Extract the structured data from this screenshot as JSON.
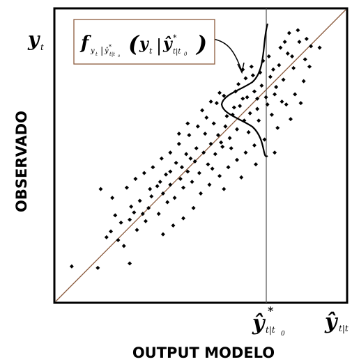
{
  "chart_data": {
    "type": "scatter",
    "title": "",
    "xlabel": "OUTPUT MODELO",
    "ylabel": "OBSERVADO",
    "xlim": [
      0,
      10
    ],
    "ylim": [
      0,
      10
    ],
    "grid": false,
    "reference_line": "y = x",
    "vertical_line_x": 7.26,
    "points": [
      [
        0.55,
        1.2
      ],
      [
        1.45,
        1.15
      ],
      [
        2.55,
        1.3
      ],
      [
        2.15,
        2.1
      ],
      [
        1.9,
        2.4
      ],
      [
        2.25,
        2.7
      ],
      [
        2.55,
        2.8
      ],
      [
        2.8,
        2.45
      ],
      [
        3.0,
        3.0
      ],
      [
        3.2,
        3.2
      ],
      [
        3.55,
        3.0
      ],
      [
        3.3,
        3.6
      ],
      [
        3.7,
        3.7
      ],
      [
        3.85,
        3.4
      ],
      [
        3.95,
        4.0
      ],
      [
        4.1,
        3.55
      ],
      [
        4.3,
        4.2
      ],
      [
        4.4,
        3.9
      ],
      [
        4.55,
        4.45
      ],
      [
        4.7,
        4.1
      ],
      [
        4.8,
        4.8
      ],
      [
        4.95,
        4.4
      ],
      [
        5.1,
        5.1
      ],
      [
        5.25,
        4.7
      ],
      [
        5.35,
        5.4
      ],
      [
        5.5,
        5.05
      ],
      [
        5.6,
        5.7
      ],
      [
        5.75,
        5.3
      ],
      [
        5.85,
        6.0
      ],
      [
        6.0,
        5.6
      ],
      [
        6.1,
        6.4
      ],
      [
        6.25,
        5.9
      ],
      [
        6.35,
        6.7
      ],
      [
        6.5,
        6.2
      ],
      [
        6.6,
        7.0
      ],
      [
        6.7,
        6.45
      ],
      [
        6.85,
        7.2
      ],
      [
        6.95,
        6.6
      ],
      [
        7.1,
        7.4
      ],
      [
        7.25,
        7.0
      ],
      [
        7.4,
        7.7
      ],
      [
        7.55,
        7.1
      ],
      [
        7.7,
        8.1
      ],
      [
        7.85,
        7.6
      ],
      [
        8.0,
        8.5
      ],
      [
        8.2,
        8.0
      ],
      [
        8.4,
        8.9
      ],
      [
        8.6,
        8.3
      ],
      [
        8.8,
        8.75
      ],
      [
        9.1,
        8.7
      ],
      [
        8.35,
        9.3
      ],
      [
        8.65,
        9.0
      ],
      [
        7.9,
        8.9
      ],
      [
        8.15,
        8.4
      ],
      [
        7.45,
        6.4
      ],
      [
        7.65,
        5.95
      ],
      [
        7.95,
        6.75
      ],
      [
        8.1,
        6.25
      ],
      [
        8.25,
        7.1
      ],
      [
        8.45,
        6.8
      ],
      [
        6.3,
        7.45
      ],
      [
        6.55,
        7.65
      ],
      [
        6.8,
        7.75
      ],
      [
        7.05,
        7.85
      ],
      [
        6.2,
        7.2
      ],
      [
        6.45,
        6.95
      ],
      [
        5.8,
        7.05
      ],
      [
        5.55,
        6.8
      ],
      [
        5.2,
        6.3
      ],
      [
        4.9,
        6.0
      ],
      [
        4.6,
        5.7
      ],
      [
        4.25,
        5.4
      ],
      [
        3.95,
        5.1
      ],
      [
        3.65,
        4.9
      ],
      [
        3.35,
        4.6
      ],
      [
        3.05,
        4.4
      ],
      [
        2.75,
        4.2
      ],
      [
        1.55,
        3.85
      ],
      [
        1.95,
        3.55
      ],
      [
        2.45,
        3.9
      ],
      [
        5.0,
        3.7
      ],
      [
        5.3,
        4.0
      ],
      [
        5.65,
        4.3
      ],
      [
        5.95,
        4.6
      ],
      [
        6.25,
        4.85
      ],
      [
        6.55,
        5.1
      ],
      [
        6.85,
        5.35
      ],
      [
        7.2,
        5.55
      ],
      [
        7.55,
        5.1
      ],
      [
        6.9,
        4.7
      ],
      [
        6.4,
        4.25
      ],
      [
        5.8,
        3.85
      ],
      [
        4.75,
        3.2
      ],
      [
        4.4,
        2.85
      ],
      [
        4.05,
        2.6
      ],
      [
        3.7,
        2.3
      ],
      [
        2.35,
        1.9
      ],
      [
        2.05,
        2.95
      ],
      [
        5.45,
        6.1
      ],
      [
        6.65,
        5.8
      ],
      [
        6.95,
        6.95
      ],
      [
        7.3,
        6.75
      ],
      [
        7.6,
        7.35
      ],
      [
        6.05,
        5.25
      ],
      [
        5.7,
        5.45
      ],
      [
        4.5,
        5.05
      ],
      [
        4.15,
        4.75
      ],
      [
        3.8,
        4.35
      ],
      [
        3.5,
        3.95
      ],
      [
        2.9,
        3.45
      ],
      [
        2.6,
        3.25
      ],
      [
        3.1,
        2.75
      ],
      [
        5.15,
        5.75
      ],
      [
        5.4,
        4.55
      ],
      [
        4.85,
        5.25
      ],
      [
        7.8,
        6.85
      ],
      [
        8.55,
        7.55
      ],
      [
        8.75,
        8.05
      ],
      [
        7.15,
        8.25
      ],
      [
        6.75,
        8.05
      ],
      [
        6.45,
        7.95
      ],
      [
        7.5,
        7.95
      ],
      [
        7.0,
        6.2
      ],
      [
        6.15,
        6.65
      ],
      [
        5.9,
        6.35
      ],
      [
        4.35,
        4.6
      ],
      [
        4.65,
        4.9
      ],
      [
        3.25,
        3.85
      ],
      [
        2.7,
        3.05
      ],
      [
        1.75,
        2.2
      ],
      [
        3.6,
        4.1
      ],
      [
        3.95,
        4.45
      ],
      [
        4.25,
        5.75
      ],
      [
        4.55,
        6.1
      ],
      [
        5.05,
        6.55
      ],
      [
        5.35,
        6.85
      ],
      [
        5.65,
        7.15
      ],
      [
        7.35,
        8.4
      ],
      [
        7.75,
        8.7
      ],
      [
        8.05,
        9.2
      ]
    ],
    "overlay": {
      "formula_main": "f",
      "formula_sub": "y",
      "formula_sub_t": "t",
      "formula_sub_bar": "|",
      "formula_sub_yhat": "ŷ",
      "formula_sub_star": "*",
      "formula_sub_idx": "t|t",
      "formula_sub_zero": "0",
      "lparen": "(",
      "rparen": ")",
      "arg_y": "y",
      "arg_t": "t",
      "arg_bar": "|",
      "arg_yhat": "ŷ",
      "arg_star": "*",
      "arg_idx": "t|t",
      "arg_zero": "0"
    },
    "y_axis_marker": {
      "symbol": "y",
      "sub": "t"
    },
    "x_axis_markers": [
      {
        "symbol": "ŷ",
        "sub": "t|t",
        "sub0": "0",
        "star": "*"
      },
      {
        "symbol": "ŷ",
        "sub": "t|t",
        "sub0": "",
        "star": ""
      }
    ]
  }
}
